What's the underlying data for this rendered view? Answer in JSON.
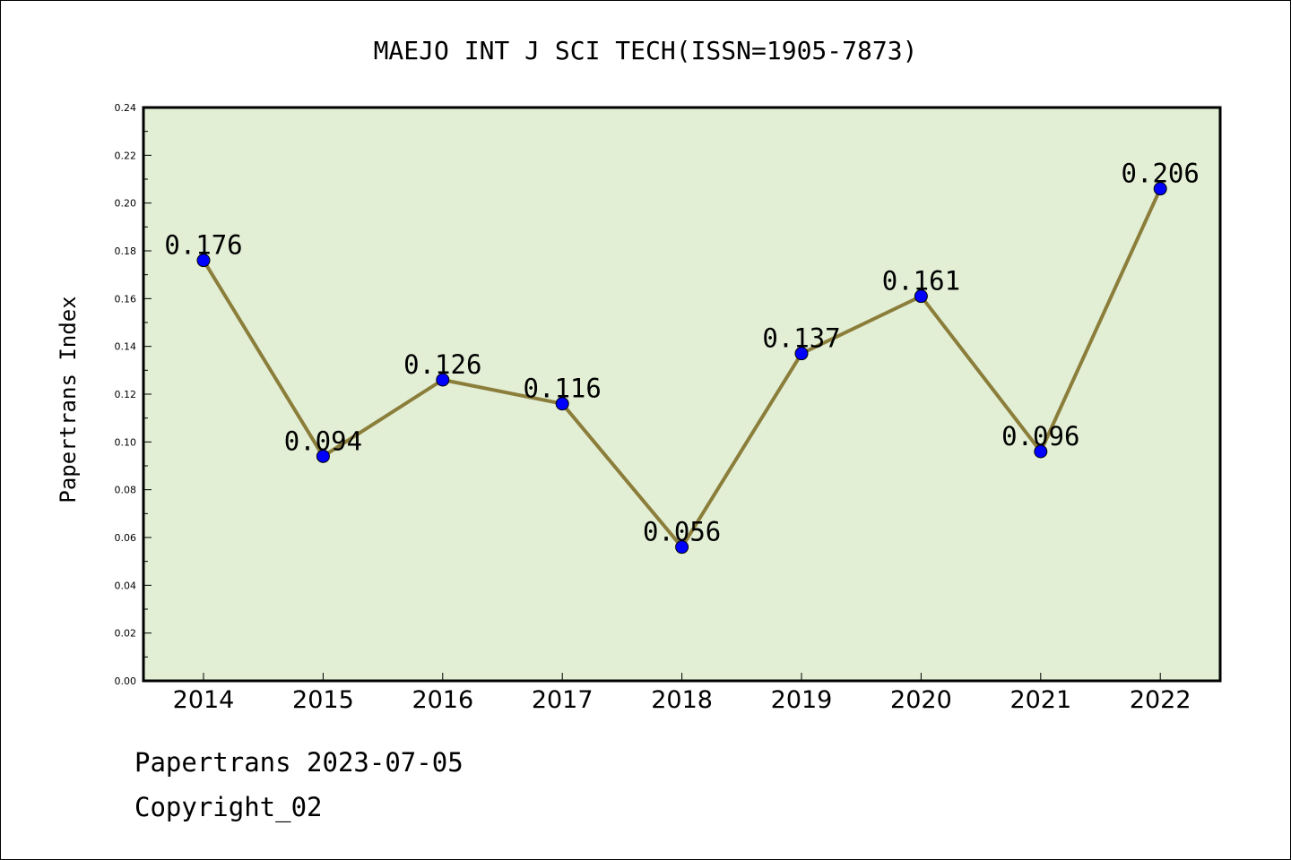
{
  "footer": {
    "line1": "Papertrans 2023-07-05",
    "line2": "Copyright_02"
  },
  "colors": {
    "plot_background": "#e2efd5",
    "line": "#8b7d3a",
    "marker": "#0000ff"
  },
  "chart_data": {
    "type": "line",
    "title": "MAEJO INT J SCI TECH(ISSN=1905-7873)",
    "xlabel": "",
    "ylabel": "Papertrans Index",
    "categories": [
      "2014",
      "2015",
      "2016",
      "2017",
      "2018",
      "2019",
      "2020",
      "2021",
      "2022"
    ],
    "values": [
      0.176,
      0.094,
      0.126,
      0.116,
      0.056,
      0.137,
      0.161,
      0.096,
      0.206
    ],
    "data_labels": [
      "0.176",
      "0.094",
      "0.126",
      "0.116",
      "0.056",
      "0.137",
      "0.161",
      "0.096",
      "0.206"
    ],
    "ylim": [
      0,
      0.24
    ],
    "yticks": [
      "0.00",
      "0.02",
      "0.04",
      "0.06",
      "0.08",
      "0.10",
      "0.12",
      "0.14",
      "0.16",
      "0.18",
      "0.20",
      "0.22",
      "0.24"
    ],
    "grid": false,
    "legend": "none"
  }
}
